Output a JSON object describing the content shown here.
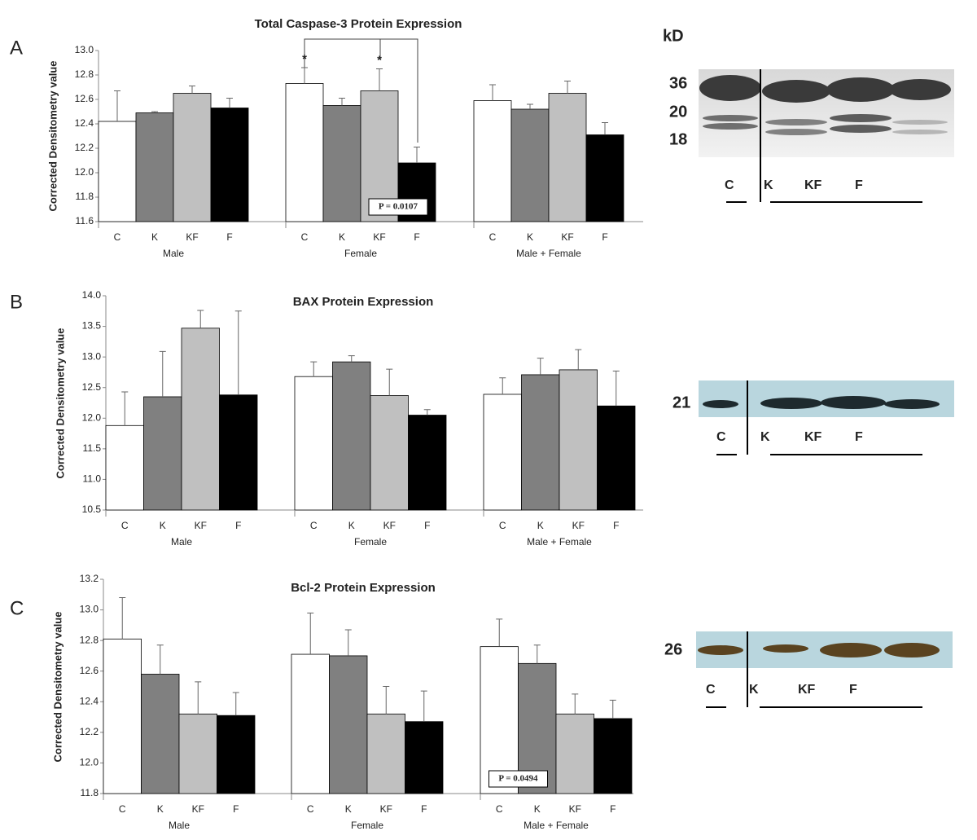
{
  "panel_labels": [
    "A",
    "B",
    "C"
  ],
  "chart_data": [
    {
      "type": "bar",
      "title": "Total Caspase-3 Protein Expression",
      "ylabel": "Corrected Densitometry value",
      "categories": [
        "Male",
        "Female",
        "Male + Female"
      ],
      "series": [
        {
          "name": "C",
          "color": "#ffffff",
          "values": [
            12.42,
            12.73,
            12.59
          ],
          "errors": [
            0.25,
            0.13,
            0.13
          ]
        },
        {
          "name": "K",
          "color": "#808080",
          "values": [
            12.49,
            12.55,
            12.52
          ],
          "errors": [
            0.01,
            0.06,
            0.04
          ]
        },
        {
          "name": "KF",
          "color": "#c0c0c0",
          "values": [
            12.65,
            12.67,
            12.65
          ],
          "errors": [
            0.06,
            0.18,
            0.1
          ]
        },
        {
          "name": "F",
          "color": "#000000",
          "values": [
            12.53,
            12.08,
            12.31
          ],
          "errors": [
            0.08,
            0.13,
            0.1
          ]
        }
      ],
      "ylim": [
        11.6,
        13.0
      ],
      "yticks": [
        11.6,
        11.8,
        {
          "value": 12,
          "label": "12.0"
        },
        12.2,
        12.4,
        12.6,
        12.8,
        {
          "value": 13,
          "label": "13.0"
        }
      ],
      "significance": [
        "*",
        "*"
      ],
      "p_value": "P = 0.0107"
    },
    {
      "type": "bar",
      "title": "BAX Protein Expression",
      "ylabel": "Corrected Densitometry value",
      "categories": [
        "Male",
        "Female",
        "Male + Female"
      ],
      "series": [
        {
          "name": "C",
          "color": "#ffffff",
          "values": [
            11.88,
            12.68,
            12.39
          ],
          "errors": [
            0.55,
            0.24,
            0.27
          ]
        },
        {
          "name": "K",
          "color": "#808080",
          "values": [
            12.35,
            12.92,
            12.71
          ],
          "errors": [
            0.74,
            0.1,
            0.27
          ]
        },
        {
          "name": "KF",
          "color": "#c0c0c0",
          "values": [
            13.47,
            12.37,
            12.79
          ],
          "errors": [
            0.29,
            0.43,
            0.33
          ]
        },
        {
          "name": "F",
          "color": "#000000",
          "values": [
            12.38,
            12.05,
            12.2
          ],
          "errors": [
            1.37,
            0.09,
            0.57
          ]
        }
      ],
      "ylim": [
        10.5,
        14.0
      ],
      "yticks": [
        10.5,
        {
          "value": 11,
          "label": "11.0"
        },
        11.5,
        {
          "value": 12,
          "label": "12.0"
        },
        12.5,
        {
          "value": 13,
          "label": "13.0"
        },
        13.5,
        {
          "value": 14,
          "label": "14.0"
        }
      ]
    },
    {
      "type": "bar",
      "title": "Bcl-2 Protein Expression",
      "ylabel": "Corrected Densitometry value",
      "categories": [
        "Male",
        "Female",
        "Male + Female"
      ],
      "series": [
        {
          "name": "C",
          "color": "#ffffff",
          "values": [
            12.81,
            12.71,
            12.76
          ],
          "errors": [
            0.27,
            0.27,
            0.18
          ]
        },
        {
          "name": "K",
          "color": "#808080",
          "values": [
            12.58,
            12.7,
            12.65
          ],
          "errors": [
            0.19,
            0.17,
            0.12
          ]
        },
        {
          "name": "KF",
          "color": "#c0c0c0",
          "values": [
            12.32,
            12.32,
            12.32
          ],
          "errors": [
            0.21,
            0.18,
            0.13
          ]
        },
        {
          "name": "F",
          "color": "#000000",
          "values": [
            12.31,
            12.27,
            12.29
          ],
          "errors": [
            0.15,
            0.2,
            0.12
          ]
        }
      ],
      "ylim": [
        11.8,
        13.2
      ],
      "yticks": [
        11.8,
        {
          "value": 12,
          "label": "12.0"
        },
        12.2,
        12.4,
        12.6,
        12.8,
        {
          "value": 13,
          "label": "13.0"
        },
        13.2
      ],
      "p_value": "P = 0.0494"
    }
  ],
  "blots": [
    {
      "unit": "kD",
      "markers": [
        "36",
        "20",
        "18"
      ],
      "lanes": [
        "C",
        "K",
        "KF",
        "F"
      ]
    },
    {
      "markers": [
        "21"
      ],
      "lanes": [
        "C",
        "K",
        "KF",
        "F"
      ]
    },
    {
      "markers": [
        "26"
      ],
      "lanes": [
        "C",
        "K",
        "KF",
        "F"
      ]
    }
  ]
}
